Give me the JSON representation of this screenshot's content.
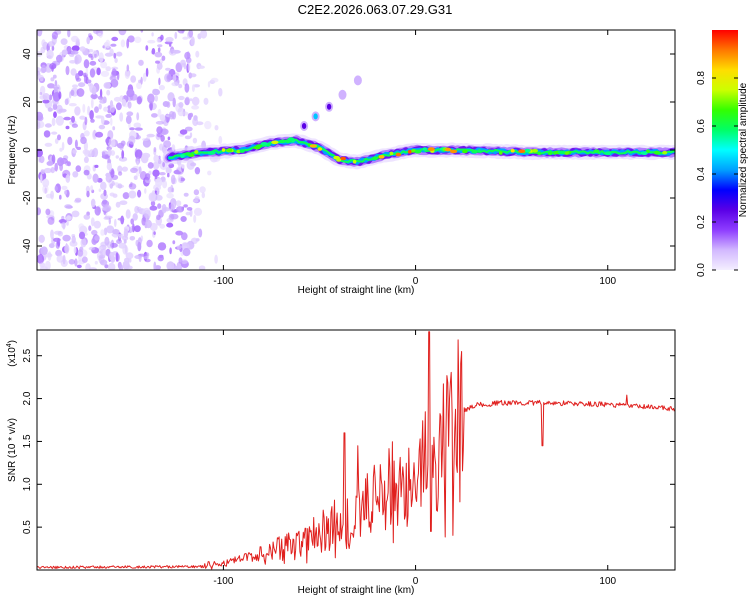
{
  "title": "C2E2.2026.063.07.29.G31",
  "chart_data": [
    {
      "type": "heatmap",
      "name": "spectrogram",
      "xlabel": "Height of straight line (km)",
      "ylabel": "Frequency (Hz)",
      "xlim": [
        -197,
        135
      ],
      "ylim": [
        -50,
        50
      ],
      "xticks": [
        -100,
        0,
        100
      ],
      "xtick_labels": [
        "-100",
        "0",
        "100"
      ],
      "yticks": [
        -40,
        -20,
        0,
        20,
        40
      ],
      "ytick_labels": [
        "-40",
        "-20",
        "0",
        "20",
        "40"
      ],
      "colorbar": {
        "label": "Normalized spectral amplitude",
        "range": [
          0.0,
          1.0
        ],
        "ticks": [
          0.0,
          0.2,
          0.4,
          0.6,
          0.8
        ],
        "tick_labels": [
          "0.0",
          "0.2",
          "0.4",
          "0.6",
          "0.8"
        ],
        "stops": [
          "#f4efff",
          "#d2b8ff",
          "#8e3dff",
          "#5a00e6",
          "#0000ff",
          "#00a0ff",
          "#00ffff",
          "#00ff66",
          "#33ff00",
          "#ccff00",
          "#ffdd00",
          "#ff7700",
          "#ff0000"
        ]
      },
      "ridge": [
        {
          "x": -128,
          "y": -3
        },
        {
          "x": -110,
          "y": -1
        },
        {
          "x": -90,
          "y": 0
        },
        {
          "x": -75,
          "y": 3
        },
        {
          "x": -62,
          "y": 4
        },
        {
          "x": -50,
          "y": 1
        },
        {
          "x": -40,
          "y": -4
        },
        {
          "x": -30,
          "y": -5
        },
        {
          "x": -15,
          "y": -2
        },
        {
          "x": 0,
          "y": 0
        },
        {
          "x": 20,
          "y": 0
        },
        {
          "x": 60,
          "y": -1
        },
        {
          "x": 100,
          "y": -1
        },
        {
          "x": 135,
          "y": -1
        }
      ],
      "branch": [
        {
          "x": -58,
          "y": 10
        },
        {
          "x": -52,
          "y": 14
        },
        {
          "x": -45,
          "y": 18
        },
        {
          "x": -38,
          "y": 23
        },
        {
          "x": -30,
          "y": 29
        }
      ],
      "noise_region_x": [
        -197,
        -120
      ]
    },
    {
      "type": "line",
      "name": "snr",
      "xlabel": "Height of straight line (km)",
      "ylabel": "SNR (10 * v/v)",
      "y_multiplier_label": "(x10",
      "y_multiplier_exponent": "4",
      "xlim": [
        -197,
        135
      ],
      "ylim": [
        0,
        2.8
      ],
      "xticks": [
        -100,
        0,
        100
      ],
      "xtick_labels": [
        "-100",
        "0",
        "100"
      ],
      "yticks": [
        0.5,
        1.0,
        1.5,
        2.0,
        2.5
      ],
      "ytick_labels": [
        "0.5",
        "1.0",
        "1.5",
        "2.0",
        "2.5"
      ],
      "color": "#e0201e",
      "trend": [
        {
          "x": -197,
          "y": 0.03
        },
        {
          "x": -110,
          "y": 0.04
        },
        {
          "x": -95,
          "y": 0.1
        },
        {
          "x": -80,
          "y": 0.2
        },
        {
          "x": -60,
          "y": 0.35
        },
        {
          "x": -40,
          "y": 0.55
        },
        {
          "x": -25,
          "y": 0.75
        },
        {
          "x": -10,
          "y": 1.05
        },
        {
          "x": 0,
          "y": 1.3
        },
        {
          "x": 10,
          "y": 1.55
        },
        {
          "x": 20,
          "y": 1.8
        },
        {
          "x": 30,
          "y": 1.92
        },
        {
          "x": 45,
          "y": 1.95
        },
        {
          "x": 70,
          "y": 1.95
        },
        {
          "x": 100,
          "y": 1.93
        },
        {
          "x": 135,
          "y": 1.88
        }
      ],
      "spikes": [
        {
          "x": 7,
          "y": 2.78
        },
        {
          "x": 8,
          "y": 0.45
        },
        {
          "x": -37,
          "y": 1.6
        },
        {
          "x": -30,
          "y": 1.45
        },
        {
          "x": 66,
          "y": 1.45
        },
        {
          "x": 110,
          "y": 2.04
        }
      ]
    }
  ]
}
